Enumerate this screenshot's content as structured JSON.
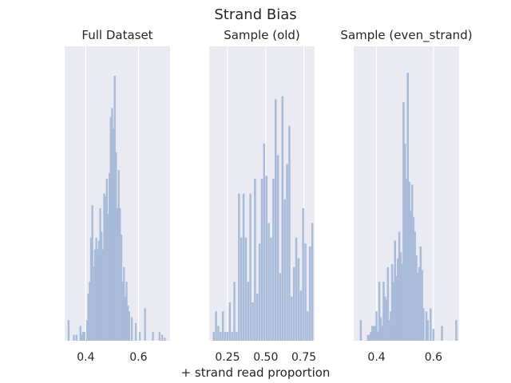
{
  "figure": {
    "title": "Strand Bias",
    "xlabel": "+ strand read proportion"
  },
  "colors": {
    "background": "#eaeaf2",
    "bar": "#a8bbd9",
    "grid": "#ffffff",
    "text": "#262626"
  },
  "chart_data": [
    {
      "type": "bar",
      "title": "Full Dataset",
      "xlabel": "",
      "ylabel": "",
      "xlim": [
        0.32,
        0.72
      ],
      "ylim": [
        0,
        1
      ],
      "xticks": [
        0.4,
        0.6
      ],
      "xtick_labels": [
        "0.4",
        "0.6"
      ],
      "grid": true,
      "bin_width": 0.007,
      "x": [
        0.335,
        0.355,
        0.365,
        0.38,
        0.385,
        0.39,
        0.395,
        0.405,
        0.41,
        0.415,
        0.42,
        0.425,
        0.43,
        0.435,
        0.44,
        0.445,
        0.45,
        0.455,
        0.46,
        0.465,
        0.47,
        0.475,
        0.48,
        0.485,
        0.49,
        0.495,
        0.5,
        0.505,
        0.51,
        0.515,
        0.52,
        0.525,
        0.53,
        0.535,
        0.54,
        0.545,
        0.55,
        0.555,
        0.56,
        0.565,
        0.575,
        0.59,
        0.605,
        0.625,
        0.655,
        0.68,
        0.69,
        0.7
      ],
      "values": [
        0.07,
        0.02,
        0.02,
        0.05,
        0.02,
        0.03,
        0.03,
        0.07,
        0.16,
        0.2,
        0.35,
        0.46,
        0.25,
        0.31,
        0.35,
        0.31,
        0.34,
        0.45,
        0.37,
        0.31,
        0.5,
        0.49,
        0.55,
        0.43,
        0.57,
        0.76,
        0.79,
        0.72,
        0.9,
        0.64,
        0.45,
        0.58,
        0.45,
        0.36,
        0.2,
        0.25,
        0.15,
        0.2,
        0.12,
        0.1,
        0.08,
        0.06,
        0.03,
        0.11,
        0.03,
        0.03,
        0.02,
        0.01
      ]
    },
    {
      "type": "bar",
      "title": "Sample (old)",
      "xlabel": "",
      "ylabel": "",
      "xlim": [
        0.13,
        0.82
      ],
      "ylim": [
        0,
        1
      ],
      "xticks": [
        0.25,
        0.5,
        0.75
      ],
      "xtick_labels": [
        "0.25",
        "0.50",
        "0.75"
      ],
      "grid": true,
      "bin_width": 0.013,
      "x": [
        0.16,
        0.175,
        0.19,
        0.205,
        0.22,
        0.235,
        0.25,
        0.265,
        0.28,
        0.295,
        0.31,
        0.325,
        0.34,
        0.355,
        0.37,
        0.385,
        0.4,
        0.415,
        0.43,
        0.445,
        0.46,
        0.475,
        0.49,
        0.505,
        0.52,
        0.535,
        0.55,
        0.565,
        0.58,
        0.595,
        0.61,
        0.625,
        0.64,
        0.655,
        0.67,
        0.685,
        0.7,
        0.715,
        0.73,
        0.745,
        0.76,
        0.775,
        0.79,
        0.805
      ],
      "values": [
        0.03,
        0.1,
        0.05,
        0.03,
        0.1,
        0.03,
        0.03,
        0.13,
        0.03,
        0.2,
        0.03,
        0.5,
        0.35,
        0.5,
        0.35,
        0.2,
        0.5,
        0.13,
        0.55,
        0.16,
        0.33,
        0.55,
        0.67,
        0.56,
        0.4,
        0.35,
        0.55,
        0.82,
        0.63,
        0.23,
        0.83,
        0.48,
        0.6,
        0.73,
        0.15,
        0.25,
        0.35,
        0.28,
        0.17,
        0.45,
        0.33,
        0.1,
        0.32,
        0.4
      ]
    },
    {
      "type": "bar",
      "title": "Sample (even_strand)",
      "xlabel": "",
      "ylabel": "",
      "xlim": [
        0.32,
        0.69
      ],
      "ylim": [
        0,
        1
      ],
      "xticks": [
        0.4,
        0.6
      ],
      "xtick_labels": [
        "0.4",
        "0.6"
      ],
      "grid": true,
      "bin_width": 0.007,
      "x": [
        0.345,
        0.37,
        0.375,
        0.38,
        0.385,
        0.39,
        0.395,
        0.4,
        0.405,
        0.41,
        0.415,
        0.42,
        0.425,
        0.43,
        0.435,
        0.44,
        0.445,
        0.45,
        0.455,
        0.46,
        0.465,
        0.47,
        0.475,
        0.48,
        0.485,
        0.49,
        0.495,
        0.5,
        0.505,
        0.51,
        0.515,
        0.52,
        0.525,
        0.53,
        0.535,
        0.54,
        0.545,
        0.55,
        0.555,
        0.56,
        0.565,
        0.575,
        0.58,
        0.59,
        0.6,
        0.63,
        0.68
      ],
      "values": [
        0.07,
        0.02,
        0.02,
        0.03,
        0.05,
        0.05,
        0.05,
        0.1,
        0.03,
        0.2,
        0.08,
        0.05,
        0.2,
        0.15,
        0.14,
        0.25,
        0.07,
        0.1,
        0.26,
        0.2,
        0.34,
        0.22,
        0.28,
        0.37,
        0.3,
        0.26,
        0.81,
        0.67,
        0.55,
        0.91,
        0.54,
        0.44,
        0.53,
        0.42,
        0.37,
        0.29,
        0.23,
        0.25,
        0.32,
        0.24,
        0.11,
        0.1,
        0.07,
        0.11,
        0.04,
        0.05,
        0.07
      ]
    }
  ]
}
